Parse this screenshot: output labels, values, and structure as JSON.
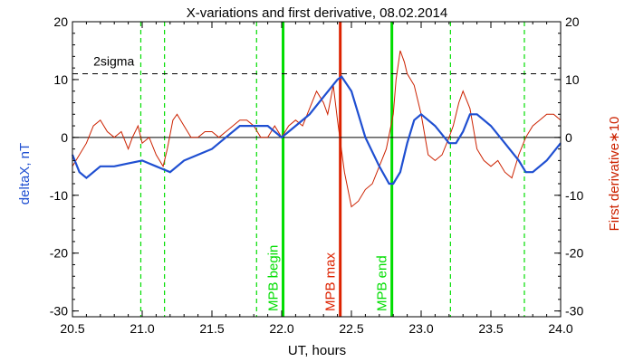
{
  "chart_data": {
    "type": "line",
    "title": "X-variations and first derivative, 08.02.2014",
    "xlabel": "UT, hours",
    "ylabel_left": "deltaX, nT",
    "ylabel_right": "First derivative∗10",
    "xlim": [
      20.5,
      24.0
    ],
    "ylim_left": [
      -31,
      20
    ],
    "ylim_right": [
      -31,
      20
    ],
    "x_ticks": [
      "20.5",
      "21.0",
      "21.5",
      "22.0",
      "22.5",
      "23.0",
      "23.5",
      "24.0"
    ],
    "y_ticks": [
      "20",
      "10",
      "0",
      "-10",
      "-20",
      "-30"
    ],
    "colors": {
      "deltaX": "#1f4fd1",
      "derivative": "#cc2200",
      "markers": "#00dd00",
      "max": "#dd2200"
    },
    "threshold": {
      "label": "2sigma",
      "value": 11
    },
    "dashed_verticals": [
      20.99,
      21.16,
      21.82,
      23.21,
      23.74
    ],
    "events": [
      {
        "label": "MPB begin",
        "x": 22.01,
        "color": "#00dd00"
      },
      {
        "label": "MPB max",
        "x": 22.42,
        "color": "#dd2200"
      },
      {
        "label": "MPB end",
        "x": 22.79,
        "color": "#00dd00"
      }
    ],
    "series": [
      {
        "name": "deltaX, nT",
        "axis": "left",
        "color": "#1f4fd1",
        "x": [
          20.5,
          20.55,
          20.6,
          20.7,
          20.8,
          20.9,
          21.0,
          21.05,
          21.1,
          21.15,
          21.2,
          21.3,
          21.4,
          21.5,
          21.6,
          21.7,
          21.75,
          21.8,
          21.9,
          21.95,
          22.0,
          22.05,
          22.1,
          22.2,
          22.3,
          22.4,
          22.43,
          22.5,
          22.6,
          22.7,
          22.77,
          22.8,
          22.85,
          22.9,
          22.95,
          23.0,
          23.05,
          23.1,
          23.2,
          23.25,
          23.3,
          23.35,
          23.4,
          23.5,
          23.6,
          23.7,
          23.75,
          23.8,
          23.9,
          24.0
        ],
        "y": [
          -3,
          -6,
          -7,
          -5,
          -5,
          -4.5,
          -4,
          -4.5,
          -5,
          -5.5,
          -6,
          -4,
          -3,
          -2,
          0,
          2,
          2,
          2,
          2,
          1,
          0,
          1,
          2,
          4,
          7,
          10,
          10.5,
          8,
          0,
          -5,
          -8,
          -8,
          -6,
          -1,
          3,
          4,
          3,
          2,
          -1,
          -1,
          1,
          4,
          4,
          2,
          -1,
          -4,
          -6,
          -6,
          -4,
          -1
        ]
      },
      {
        "name": "First derivative∗10",
        "axis": "right",
        "color": "#cc2200",
        "x": [
          20.5,
          20.55,
          20.6,
          20.65,
          20.7,
          20.75,
          20.8,
          20.85,
          20.9,
          20.93,
          20.97,
          21.0,
          21.05,
          21.1,
          21.15,
          21.18,
          21.22,
          21.25,
          21.3,
          21.35,
          21.4,
          21.45,
          21.5,
          21.55,
          21.6,
          21.65,
          21.7,
          21.75,
          21.8,
          21.85,
          21.9,
          21.95,
          22.0,
          22.05,
          22.1,
          22.15,
          22.2,
          22.25,
          22.3,
          22.33,
          22.37,
          22.4,
          22.45,
          22.5,
          22.55,
          22.6,
          22.65,
          22.7,
          22.75,
          22.8,
          22.82,
          22.85,
          22.88,
          22.9,
          22.95,
          23.0,
          23.05,
          23.1,
          23.15,
          23.2,
          23.23,
          23.27,
          23.3,
          23.35,
          23.4,
          23.45,
          23.5,
          23.55,
          23.6,
          23.65,
          23.7,
          23.75,
          23.8,
          23.85,
          23.9,
          23.95,
          24.0
        ],
        "y": [
          -5,
          -3,
          -1,
          2,
          3,
          1,
          0,
          1,
          -2,
          0,
          2,
          -1,
          0,
          -3,
          -5,
          -2,
          3,
          4,
          2,
          0,
          0,
          1,
          1,
          0,
          1,
          2,
          3,
          3,
          2,
          0,
          0,
          2,
          0,
          2,
          3,
          2,
          5,
          8,
          6,
          4,
          9,
          3,
          -6,
          -12,
          -11,
          -9,
          -8,
          -5,
          -2,
          4,
          10,
          15,
          13,
          11,
          9,
          4,
          -3,
          -4,
          -3,
          0,
          2,
          6,
          8,
          5,
          -2,
          -4,
          -5,
          -4,
          -6,
          -7,
          -3,
          0,
          2,
          3,
          4,
          4,
          3
        ]
      }
    ]
  }
}
